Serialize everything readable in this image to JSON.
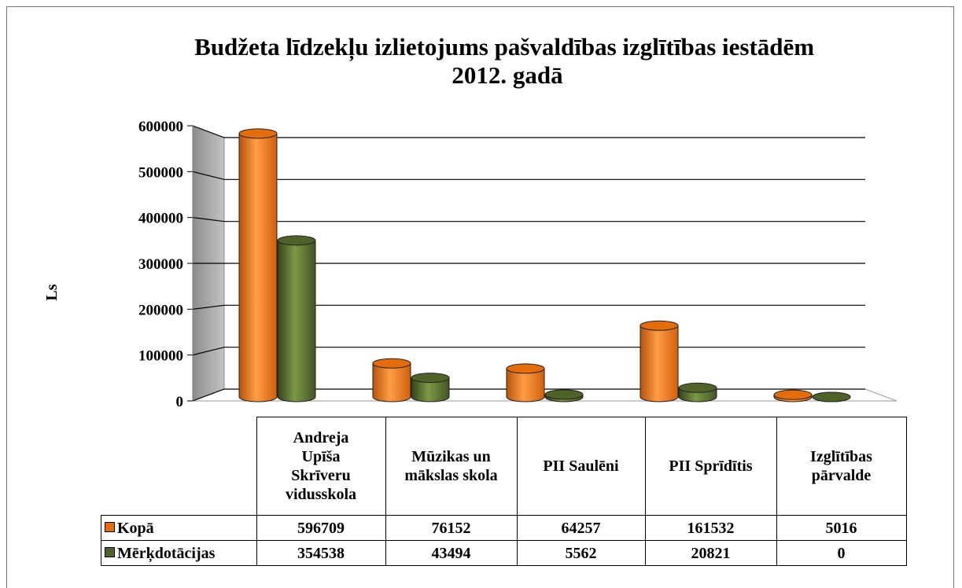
{
  "chart_data": {
    "type": "bar3d",
    "title": "Budžeta līdzekļu izlietojums pašvaldības izglītības iestādēm 2012. gadā",
    "ylabel": "Ls",
    "categories": [
      "Andreja Upīša Skrīveru vidusskola",
      "Mūzikas un mākslas skola",
      "PII Saulēni",
      "PII Sprīdītis",
      "Izglītības pārvalde"
    ],
    "series": [
      {
        "name": "Kopā",
        "color": "#e46c0a",
        "values": [
          596709,
          76152,
          64257,
          161532,
          5016
        ]
      },
      {
        "name": "Mērķdotācijas",
        "color": "#4f6228",
        "values": [
          354538,
          43494,
          5562,
          20821,
          0
        ]
      }
    ],
    "ylim": [
      0,
      600000
    ],
    "yticks": [
      0,
      100000,
      200000,
      300000,
      400000,
      500000,
      600000
    ],
    "grid": true
  }
}
